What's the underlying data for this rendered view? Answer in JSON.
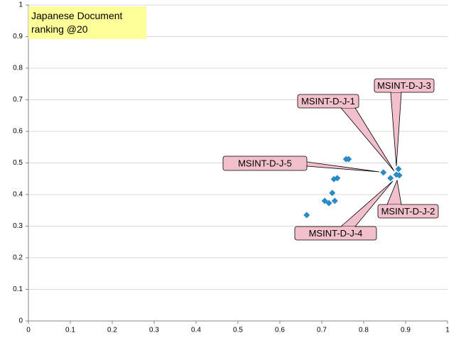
{
  "chart_data": {
    "type": "scatter",
    "title": "Japanese Document ranking @20",
    "x": [
      0.664,
      0.707,
      0.717,
      0.731,
      0.725,
      0.729,
      0.737,
      0.758,
      0.764,
      0.847,
      0.864,
      0.878,
      0.883,
      0.885
    ],
    "values": [
      0.335,
      0.38,
      0.373,
      0.38,
      0.405,
      0.449,
      0.452,
      0.512,
      0.512,
      0.47,
      0.452,
      0.463,
      0.481,
      0.461
    ],
    "color": "#2a8ac4",
    "xlim": [
      0,
      1
    ],
    "xticks": [
      0,
      0.1,
      0.2,
      0.3,
      0.4,
      0.5,
      0.6,
      0.7,
      0.8,
      0.9,
      1
    ],
    "ylim": [
      0,
      1
    ],
    "yticks": [
      0,
      0.1,
      0.2,
      0.3,
      0.4,
      0.5,
      0.6,
      0.7,
      0.8,
      0.9,
      1
    ],
    "grid": true,
    "annotations": [
      "MSINT-D-J-3",
      "MSINT-D-J-1",
      "MSINT-D-J-5",
      "MSINT-D-J-2",
      "MSINT-D-J-4"
    ]
  }
}
